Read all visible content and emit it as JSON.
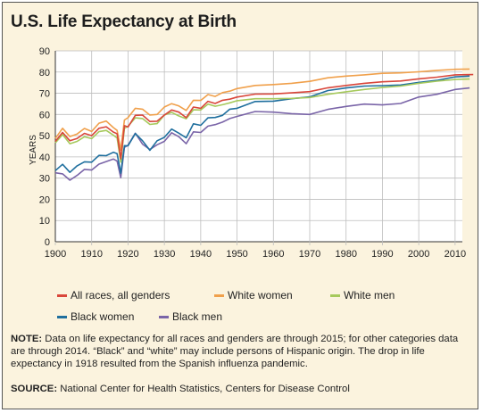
{
  "title": "U.S. Life Expectancy at Birth",
  "colors": {
    "all_races": "#d9463a",
    "white_women": "#f0a04b",
    "white_men": "#a6c95c",
    "black_women": "#1f6f9e",
    "black_men": "#7a65a8"
  },
  "legend": [
    {
      "label": "All races, all genders",
      "color": "#d9463a"
    },
    {
      "label": "White women",
      "color": "#f0a04b"
    },
    {
      "label": "White men",
      "color": "#a6c95c"
    },
    {
      "label": "Black women",
      "color": "#1f6f9e"
    },
    {
      "label": "Black men",
      "color": "#7a65a8"
    }
  ],
  "note_label": "NOTE:",
  "note_text": "Data on life expectancy for all races and genders are through 2015; for other categories data are through 2014. “Black” and “white” may include persons of Hispanic origin. The drop in life expectancy in 1918 resulted from the Spanish influenza pandemic.",
  "source_label": "SOURCE:",
  "source_text": "National Center for Health Statistics, Centers for Disease Control",
  "chart_data": {
    "type": "line",
    "title": "U.S. Life Expectancy at Birth",
    "xlabel": "",
    "ylabel": "YEARS",
    "xlim": [
      1900,
      2012
    ],
    "ylim": [
      0,
      90
    ],
    "xticks": [
      1900,
      1910,
      1920,
      1930,
      1940,
      1950,
      1960,
      1970,
      1980,
      1990,
      2000,
      2010
    ],
    "yticks": [
      0,
      10,
      20,
      30,
      40,
      50,
      60,
      70,
      80,
      90
    ],
    "grid": true,
    "legend_position": "bottom",
    "series": [
      {
        "name": "All races, all genders",
        "color": "#d9463a",
        "x": [
          1900,
          1902,
          1904,
          1906,
          1908,
          1910,
          1912,
          1914,
          1916,
          1917,
          1918,
          1919,
          1920,
          1922,
          1924,
          1926,
          1928,
          1930,
          1932,
          1934,
          1936,
          1938,
          1940,
          1942,
          1944,
          1946,
          1948,
          1950,
          1955,
          1960,
          1965,
          1970,
          1975,
          1980,
          1985,
          1990,
          1995,
          2000,
          2005,
          2010,
          2015
        ],
        "y": [
          47.3,
          51.5,
          47.6,
          48.7,
          51.1,
          50.0,
          53.5,
          54.2,
          51.7,
          50.9,
          39.1,
          54.7,
          54.1,
          59.6,
          59.7,
          56.7,
          56.8,
          59.7,
          62.1,
          61.1,
          58.5,
          63.5,
          62.9,
          66.2,
          65.2,
          66.7,
          67.2,
          68.2,
          69.6,
          69.7,
          70.2,
          70.8,
          72.6,
          73.7,
          74.7,
          75.4,
          75.8,
          76.8,
          77.6,
          78.7,
          78.8
        ]
      },
      {
        "name": "White women",
        "color": "#f0a04b",
        "x": [
          1900,
          1902,
          1904,
          1906,
          1908,
          1910,
          1912,
          1914,
          1916,
          1917,
          1918,
          1919,
          1920,
          1922,
          1924,
          1926,
          1928,
          1930,
          1932,
          1934,
          1936,
          1938,
          1940,
          1942,
          1944,
          1946,
          1948,
          1950,
          1955,
          1960,
          1965,
          1970,
          1975,
          1980,
          1985,
          1990,
          1995,
          2000,
          2005,
          2010,
          2014
        ],
        "y": [
          48.7,
          53.5,
          49.6,
          50.8,
          53.4,
          52.0,
          55.9,
          56.9,
          53.8,
          52.5,
          43.2,
          57.4,
          58.5,
          62.9,
          62.5,
          59.7,
          60.0,
          63.5,
          65.1,
          64.0,
          61.9,
          66.7,
          66.6,
          69.4,
          68.5,
          70.3,
          71.0,
          72.2,
          73.7,
          74.1,
          74.7,
          75.6,
          77.3,
          78.1,
          78.7,
          79.4,
          79.6,
          80.1,
          80.8,
          81.3,
          81.4
        ]
      },
      {
        "name": "White men",
        "color": "#a6c95c",
        "x": [
          1900,
          1902,
          1904,
          1906,
          1908,
          1910,
          1912,
          1914,
          1916,
          1917,
          1918,
          1919,
          1920,
          1922,
          1924,
          1926,
          1928,
          1930,
          1932,
          1934,
          1936,
          1938,
          1940,
          1942,
          1944,
          1946,
          1948,
          1950,
          1955,
          1960,
          1965,
          1970,
          1975,
          1980,
          1985,
          1990,
          1995,
          2000,
          2005,
          2010,
          2014
        ],
        "y": [
          46.6,
          50.5,
          46.2,
          47.3,
          49.5,
          48.6,
          51.9,
          52.5,
          50.2,
          48.9,
          37.5,
          53.5,
          54.4,
          58.4,
          58.1,
          55.3,
          55.7,
          59.7,
          61.0,
          59.3,
          58.0,
          62.2,
          62.1,
          64.9,
          63.9,
          64.6,
          65.5,
          66.5,
          67.4,
          67.4,
          67.6,
          68.0,
          69.5,
          70.7,
          71.8,
          72.7,
          73.4,
          74.7,
          75.7,
          76.5,
          76.7
        ]
      },
      {
        "name": "Black women",
        "color": "#1f6f9e",
        "x": [
          1900,
          1902,
          1904,
          1906,
          1908,
          1910,
          1912,
          1914,
          1916,
          1917,
          1918,
          1919,
          1920,
          1922,
          1924,
          1926,
          1928,
          1930,
          1932,
          1934,
          1936,
          1938,
          1940,
          1942,
          1944,
          1946,
          1948,
          1950,
          1955,
          1960,
          1965,
          1970,
          1975,
          1980,
          1985,
          1990,
          1995,
          2000,
          2005,
          2010,
          2014
        ],
        "y": [
          33.5,
          36.5,
          32.7,
          35.8,
          37.7,
          37.5,
          40.7,
          40.6,
          42.2,
          41.5,
          32.3,
          45.3,
          45.2,
          51.0,
          47.6,
          43.1,
          47.6,
          49.2,
          53.1,
          51.2,
          49.0,
          55.6,
          54.9,
          58.4,
          58.6,
          59.6,
          62.5,
          62.9,
          66.1,
          66.3,
          67.4,
          68.3,
          71.3,
          72.5,
          73.4,
          73.6,
          73.9,
          75.1,
          76.1,
          77.7,
          78.1
        ]
      },
      {
        "name": "Black men",
        "color": "#7a65a8",
        "x": [
          1900,
          1902,
          1904,
          1906,
          1908,
          1910,
          1912,
          1914,
          1916,
          1917,
          1918,
          1919,
          1920,
          1922,
          1924,
          1926,
          1928,
          1930,
          1932,
          1934,
          1936,
          1938,
          1940,
          1942,
          1944,
          1946,
          1948,
          1950,
          1955,
          1960,
          1965,
          1970,
          1975,
          1980,
          1985,
          1990,
          1995,
          2000,
          2005,
          2010,
          2014
        ],
        "y": [
          32.5,
          32.0,
          29.0,
          31.3,
          34.1,
          33.8,
          36.6,
          37.8,
          39.0,
          38.0,
          30.2,
          44.5,
          45.5,
          51.2,
          46.0,
          43.5,
          45.7,
          47.3,
          51.4,
          49.5,
          46.2,
          51.8,
          51.5,
          54.5,
          55.2,
          56.4,
          58.1,
          59.1,
          61.4,
          61.1,
          60.4,
          60.0,
          62.4,
          63.8,
          64.9,
          64.5,
          65.2,
          68.2,
          69.5,
          71.8,
          72.5
        ]
      }
    ]
  }
}
